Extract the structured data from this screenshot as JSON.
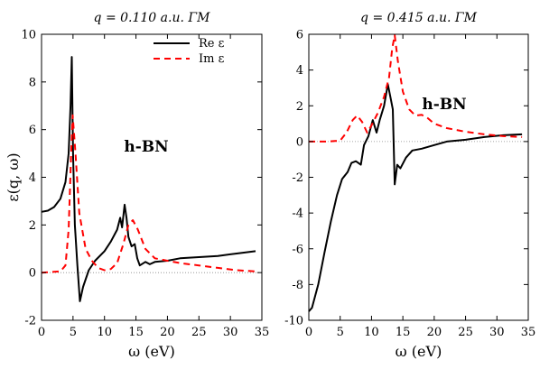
{
  "chart_data": [
    {
      "type": "line",
      "title": "q = 0.110 a.u. ΓM",
      "xlabel": "ω (eV)",
      "ylabel": "ε(q, ω)",
      "xlim": [
        0,
        35
      ],
      "ylim": [
        -2,
        10
      ],
      "xticks": [
        "0",
        "5",
        "10",
        "15",
        "20",
        "25",
        "30",
        "35"
      ],
      "yticks": [
        "-2",
        "0",
        "2",
        "4",
        "6",
        "8",
        "10"
      ],
      "grid": false,
      "legend": "top-right",
      "annotation": "h-BN",
      "series": [
        {
          "name": "Re ε",
          "color": "#000000",
          "style": "solid",
          "points": [
            [
              0,
              2.55
            ],
            [
              1,
              2.6
            ],
            [
              2,
              2.75
            ],
            [
              3,
              3.1
            ],
            [
              3.8,
              3.8
            ],
            [
              4.3,
              5.0
            ],
            [
              4.6,
              7.0
            ],
            [
              4.8,
              9.05
            ],
            [
              5.0,
              5.0
            ],
            [
              5.3,
              2.0
            ],
            [
              5.7,
              0.3
            ],
            [
              6.1,
              -1.2
            ],
            [
              6.6,
              -0.6
            ],
            [
              7.5,
              0.1
            ],
            [
              8.5,
              0.5
            ],
            [
              10,
              0.9
            ],
            [
              11,
              1.3
            ],
            [
              12,
              1.8
            ],
            [
              12.5,
              2.3
            ],
            [
              12.8,
              1.9
            ],
            [
              13.2,
              2.85
            ],
            [
              13.5,
              2.3
            ],
            [
              13.8,
              1.5
            ],
            [
              14.3,
              1.1
            ],
            [
              14.8,
              1.2
            ],
            [
              15.2,
              0.6
            ],
            [
              15.6,
              0.3
            ],
            [
              16.5,
              0.45
            ],
            [
              17.2,
              0.35
            ],
            [
              18,
              0.45
            ],
            [
              20,
              0.5
            ],
            [
              22,
              0.6
            ],
            [
              25,
              0.65
            ],
            [
              28,
              0.7
            ],
            [
              31,
              0.8
            ],
            [
              34,
              0.9
            ]
          ]
        },
        {
          "name": "Im ε",
          "color": "#ff0000",
          "style": "dashed",
          "points": [
            [
              0,
              0
            ],
            [
              3,
              0.05
            ],
            [
              3.8,
              0.3
            ],
            [
              4.3,
              1.8
            ],
            [
              4.7,
              5.0
            ],
            [
              4.95,
              6.6
            ],
            [
              5.4,
              5.0
            ],
            [
              6,
              2.5
            ],
            [
              7,
              1.0
            ],
            [
              8,
              0.5
            ],
            [
              9,
              0.2
            ],
            [
              10,
              0.1
            ],
            [
              11,
              0.15
            ],
            [
              12,
              0.4
            ],
            [
              13,
              1.2
            ],
            [
              13.8,
              2.0
            ],
            [
              14.5,
              2.2
            ],
            [
              15.3,
              1.8
            ],
            [
              16.5,
              1.0
            ],
            [
              18,
              0.6
            ],
            [
              20,
              0.5
            ],
            [
              22,
              0.4
            ],
            [
              25,
              0.3
            ],
            [
              28,
              0.2
            ],
            [
              31,
              0.1
            ],
            [
              34,
              0.05
            ]
          ]
        }
      ]
    },
    {
      "type": "line",
      "title": "q = 0.415 a.u. ΓM",
      "xlabel": "ω (eV)",
      "ylabel": "",
      "xlim": [
        0,
        35
      ],
      "ylim": [
        -10,
        6
      ],
      "xticks": [
        "0",
        "5",
        "10",
        "15",
        "20",
        "25",
        "30",
        "35"
      ],
      "yticks": [
        "-10",
        "-8",
        "-6",
        "-4",
        "-2",
        "0",
        "2",
        "4",
        "6"
      ],
      "grid": false,
      "legend": "none",
      "annotation": "h-BN",
      "series": [
        {
          "name": "Re ε",
          "color": "#000000",
          "style": "solid",
          "points": [
            [
              0,
              -9.5
            ],
            [
              0.5,
              -9.3
            ],
            [
              1.5,
              -8.0
            ],
            [
              2.5,
              -6.2
            ],
            [
              3.5,
              -4.5
            ],
            [
              4.5,
              -3.0
            ],
            [
              5.3,
              -2.1
            ],
            [
              6.2,
              -1.7
            ],
            [
              6.8,
              -1.2
            ],
            [
              7.5,
              -1.1
            ],
            [
              8.3,
              -1.3
            ],
            [
              8.8,
              -0.2
            ],
            [
              9.5,
              0.3
            ],
            [
              10.2,
              1.2
            ],
            [
              10.8,
              0.5
            ],
            [
              11.3,
              1.2
            ],
            [
              12,
              2.0
            ],
            [
              12.6,
              3.2
            ],
            [
              13,
              2.5
            ],
            [
              13.4,
              1.8
            ],
            [
              13.7,
              -2.4
            ],
            [
              14.1,
              -1.3
            ],
            [
              14.6,
              -1.5
            ],
            [
              15.5,
              -0.9
            ],
            [
              16.5,
              -0.5
            ],
            [
              18,
              -0.4
            ],
            [
              20,
              -0.2
            ],
            [
              22,
              0
            ],
            [
              25,
              0.1
            ],
            [
              28,
              0.25
            ],
            [
              31,
              0.35
            ],
            [
              34,
              0.4
            ]
          ]
        },
        {
          "name": "Im ε",
          "color": "#ff0000",
          "style": "dashed",
          "points": [
            [
              0,
              0
            ],
            [
              3,
              0
            ],
            [
              5,
              0.05
            ],
            [
              6,
              0.5
            ],
            [
              7,
              1.2
            ],
            [
              7.7,
              1.45
            ],
            [
              8.5,
              1.1
            ],
            [
              9.3,
              0.5
            ],
            [
              10,
              0.9
            ],
            [
              11,
              1.6
            ],
            [
              12,
              2.5
            ],
            [
              12.8,
              3.6
            ],
            [
              13.3,
              5.2
            ],
            [
              13.7,
              5.95
            ],
            [
              14.2,
              4.5
            ],
            [
              15,
              2.8
            ],
            [
              16,
              1.8
            ],
            [
              17,
              1.45
            ],
            [
              18,
              1.5
            ],
            [
              19,
              1.3
            ],
            [
              20,
              1.0
            ],
            [
              22,
              0.75
            ],
            [
              25,
              0.55
            ],
            [
              28,
              0.4
            ],
            [
              31,
              0.3
            ],
            [
              34,
              0.25
            ]
          ]
        }
      ]
    }
  ]
}
